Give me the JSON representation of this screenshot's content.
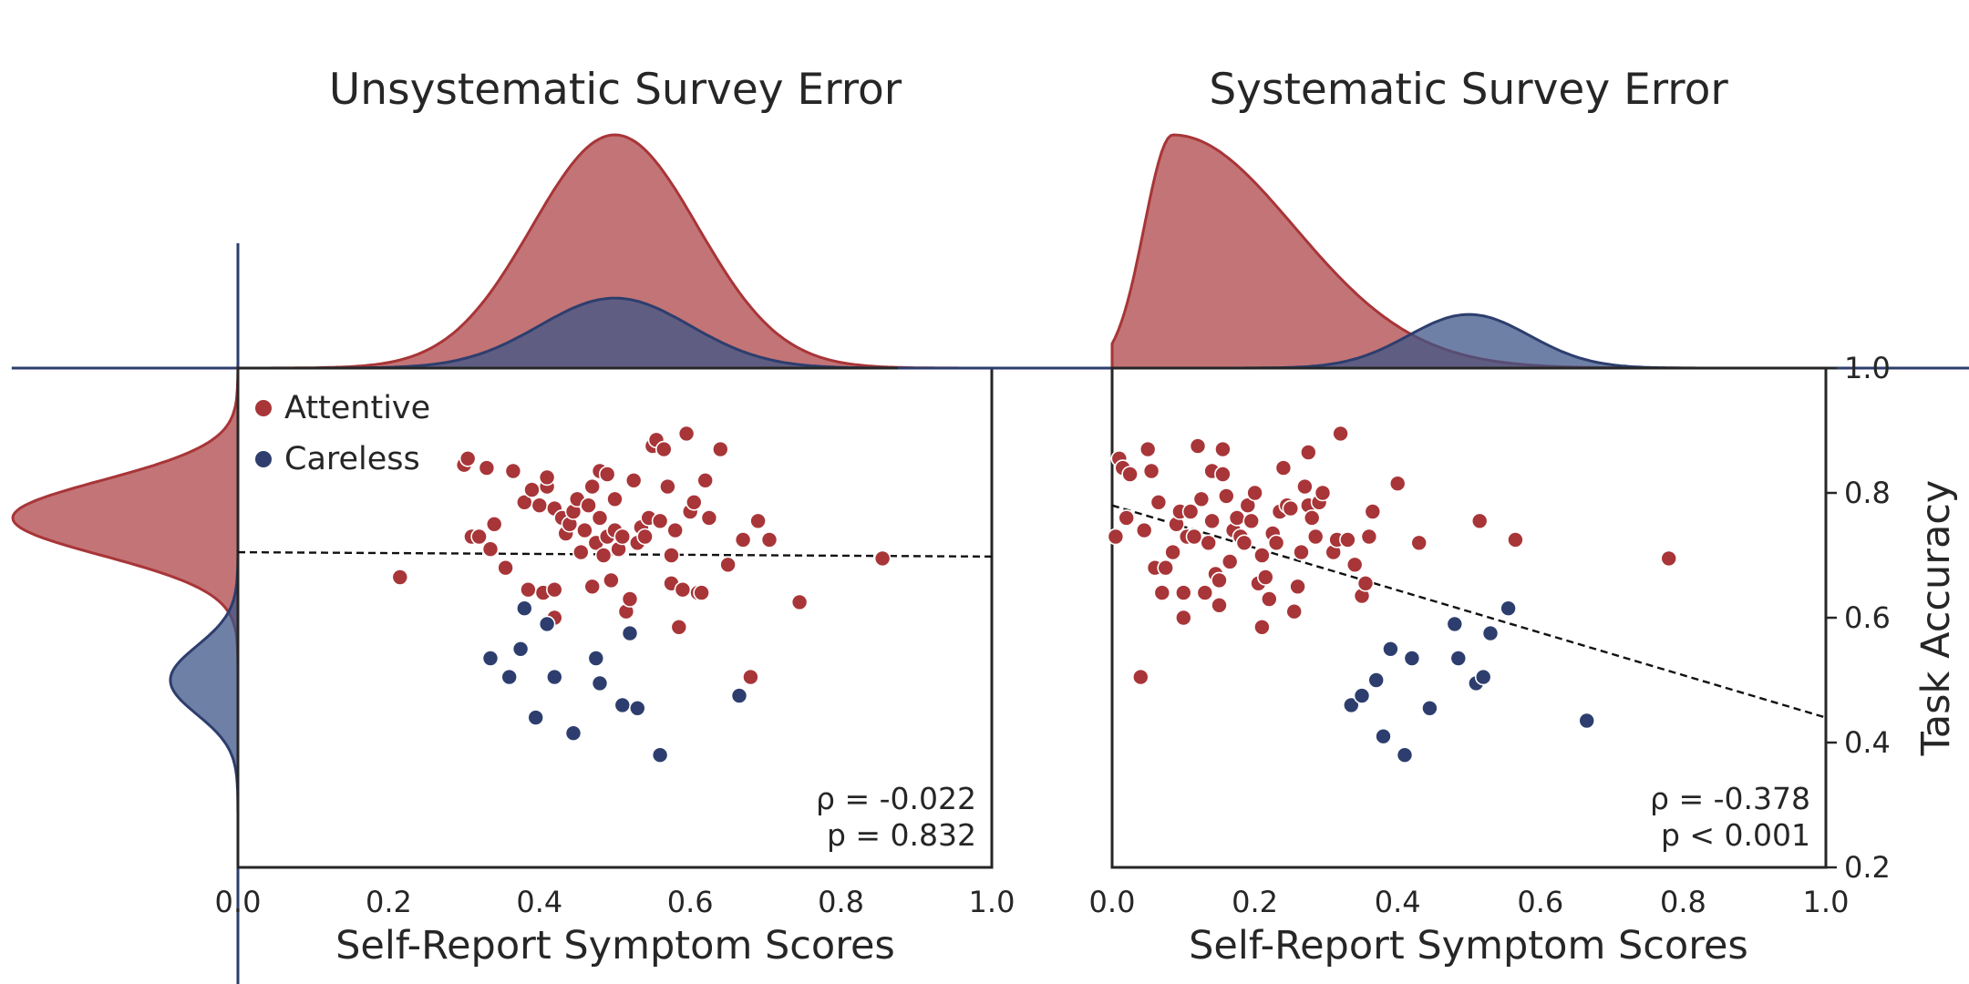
{
  "colors": {
    "attentive": "#a83538",
    "careless": "#2d3e6e",
    "attentive_fill": "#b24d50",
    "careless_fill": "#3f5688"
  },
  "legend": {
    "attentive": "Attentive",
    "careless": "Careless"
  },
  "chart_data": [
    {
      "type": "scatter",
      "title": "Unsystematic Survey Error",
      "xlabel": "Self-Report Symptom Scores",
      "ylabel": "",
      "xlim": [
        0,
        1
      ],
      "ylim": [
        0.2,
        1.0
      ],
      "xticks": [
        "0.0",
        "0.2",
        "0.4",
        "0.6",
        "0.8",
        "1.0"
      ],
      "yticks": [],
      "stat_rho": "ρ = -0.022",
      "stat_p": "p = 0.832",
      "regression": {
        "x": [
          0,
          1
        ],
        "y": [
          0.705,
          0.698
        ]
      },
      "series": [
        {
          "name": "Attentive",
          "points": [
            [
              0.215,
              0.665
            ],
            [
              0.3,
              0.845
            ],
            [
              0.305,
              0.855
            ],
            [
              0.31,
              0.73
            ],
            [
              0.32,
              0.73
            ],
            [
              0.33,
              0.84
            ],
            [
              0.335,
              0.71
            ],
            [
              0.34,
              0.75
            ],
            [
              0.355,
              0.68
            ],
            [
              0.365,
              0.835
            ],
            [
              0.38,
              0.785
            ],
            [
              0.385,
              0.645
            ],
            [
              0.39,
              0.805
            ],
            [
              0.4,
              0.78
            ],
            [
              0.405,
              0.64
            ],
            [
              0.41,
              0.81
            ],
            [
              0.41,
              0.825
            ],
            [
              0.42,
              0.775
            ],
            [
              0.42,
              0.645
            ],
            [
              0.42,
              0.6
            ],
            [
              0.43,
              0.76
            ],
            [
              0.435,
              0.735
            ],
            [
              0.44,
              0.75
            ],
            [
              0.445,
              0.77
            ],
            [
              0.45,
              0.79
            ],
            [
              0.455,
              0.705
            ],
            [
              0.46,
              0.74
            ],
            [
              0.465,
              0.78
            ],
            [
              0.47,
              0.81
            ],
            [
              0.47,
              0.65
            ],
            [
              0.475,
              0.72
            ],
            [
              0.48,
              0.835
            ],
            [
              0.48,
              0.76
            ],
            [
              0.485,
              0.7
            ],
            [
              0.49,
              0.83
            ],
            [
              0.49,
              0.73
            ],
            [
              0.495,
              0.66
            ],
            [
              0.5,
              0.79
            ],
            [
              0.5,
              0.74
            ],
            [
              0.505,
              0.71
            ],
            [
              0.51,
              0.73
            ],
            [
              0.515,
              0.61
            ],
            [
              0.52,
              0.63
            ],
            [
              0.525,
              0.82
            ],
            [
              0.53,
              0.72
            ],
            [
              0.535,
              0.745
            ],
            [
              0.54,
              0.73
            ],
            [
              0.545,
              0.76
            ],
            [
              0.55,
              0.875
            ],
            [
              0.555,
              0.885
            ],
            [
              0.56,
              0.755
            ],
            [
              0.565,
              0.87
            ],
            [
              0.57,
              0.81
            ],
            [
              0.575,
              0.7
            ],
            [
              0.575,
              0.655
            ],
            [
              0.58,
              0.74
            ],
            [
              0.585,
              0.585
            ],
            [
              0.59,
              0.645
            ],
            [
              0.595,
              0.895
            ],
            [
              0.6,
              0.77
            ],
            [
              0.605,
              0.785
            ],
            [
              0.61,
              0.64
            ],
            [
              0.615,
              0.64
            ],
            [
              0.62,
              0.82
            ],
            [
              0.625,
              0.76
            ],
            [
              0.64,
              0.87
            ],
            [
              0.65,
              0.685
            ],
            [
              0.67,
              0.725
            ],
            [
              0.68,
              0.505
            ],
            [
              0.69,
              0.755
            ],
            [
              0.705,
              0.725
            ],
            [
              0.745,
              0.625
            ],
            [
              0.855,
              0.695
            ]
          ]
        },
        {
          "name": "Careless",
          "points": [
            [
              0.335,
              0.535
            ],
            [
              0.36,
              0.505
            ],
            [
              0.375,
              0.55
            ],
            [
              0.38,
              0.615
            ],
            [
              0.395,
              0.44
            ],
            [
              0.41,
              0.59
            ],
            [
              0.42,
              0.505
            ],
            [
              0.445,
              0.415
            ],
            [
              0.475,
              0.535
            ],
            [
              0.48,
              0.495
            ],
            [
              0.51,
              0.46
            ],
            [
              0.52,
              0.575
            ],
            [
              0.53,
              0.455
            ],
            [
              0.56,
              0.38
            ],
            [
              0.665,
              0.475
            ]
          ]
        }
      ],
      "marginal_x": [
        {
          "name": "Attentive",
          "mean": 0.5,
          "sd": 0.11,
          "amp": 1.0
        },
        {
          "name": "Careless",
          "mean": 0.5,
          "sd": 0.1,
          "amp": 0.3
        }
      ],
      "marginal_y": [
        {
          "name": "Attentive",
          "mean": 0.76,
          "sd": 0.06,
          "amp": 1.0
        },
        {
          "name": "Careless",
          "mean": 0.5,
          "sd": 0.055,
          "amp": 0.3
        }
      ]
    },
    {
      "type": "scatter",
      "title": "Systematic Survey Error",
      "xlabel": "Self-Report Symptom Scores",
      "ylabel": "Task Accuracy",
      "xlim": [
        0,
        1
      ],
      "ylim": [
        0.2,
        1.0
      ],
      "xticks": [
        "0.0",
        "0.2",
        "0.4",
        "0.6",
        "0.8",
        "1.0"
      ],
      "yticks": [
        "0.2",
        "0.4",
        "0.6",
        "0.8",
        "1.0"
      ],
      "stat_rho": "ρ = -0.378",
      "stat_p": "p < 0.001",
      "regression": {
        "x": [
          0,
          1
        ],
        "y": [
          0.78,
          0.44
        ]
      },
      "series": [
        {
          "name": "Attentive",
          "points": [
            [
              0.005,
              0.73
            ],
            [
              0.01,
              0.855
            ],
            [
              0.015,
              0.84
            ],
            [
              0.02,
              0.76
            ],
            [
              0.025,
              0.83
            ],
            [
              0.04,
              0.505
            ],
            [
              0.045,
              0.74
            ],
            [
              0.05,
              0.87
            ],
            [
              0.055,
              0.835
            ],
            [
              0.06,
              0.68
            ],
            [
              0.065,
              0.785
            ],
            [
              0.07,
              0.64
            ],
            [
              0.075,
              0.68
            ],
            [
              0.085,
              0.705
            ],
            [
              0.09,
              0.75
            ],
            [
              0.095,
              0.77
            ],
            [
              0.1,
              0.6
            ],
            [
              0.1,
              0.64
            ],
            [
              0.105,
              0.73
            ],
            [
              0.11,
              0.77
            ],
            [
              0.115,
              0.73
            ],
            [
              0.12,
              0.875
            ],
            [
              0.125,
              0.79
            ],
            [
              0.13,
              0.64
            ],
            [
              0.135,
              0.72
            ],
            [
              0.14,
              0.755
            ],
            [
              0.14,
              0.835
            ],
            [
              0.145,
              0.67
            ],
            [
              0.15,
              0.62
            ],
            [
              0.15,
              0.66
            ],
            [
              0.155,
              0.83
            ],
            [
              0.155,
              0.87
            ],
            [
              0.16,
              0.795
            ],
            [
              0.165,
              0.69
            ],
            [
              0.17,
              0.74
            ],
            [
              0.175,
              0.76
            ],
            [
              0.18,
              0.73
            ],
            [
              0.185,
              0.72
            ],
            [
              0.19,
              0.78
            ],
            [
              0.195,
              0.755
            ],
            [
              0.2,
              0.8
            ],
            [
              0.205,
              0.655
            ],
            [
              0.21,
              0.585
            ],
            [
              0.21,
              0.7
            ],
            [
              0.215,
              0.665
            ],
            [
              0.22,
              0.63
            ],
            [
              0.225,
              0.735
            ],
            [
              0.23,
              0.72
            ],
            [
              0.235,
              0.77
            ],
            [
              0.24,
              0.84
            ],
            [
              0.245,
              0.78
            ],
            [
              0.25,
              0.775
            ],
            [
              0.255,
              0.61
            ],
            [
              0.26,
              0.65
            ],
            [
              0.265,
              0.705
            ],
            [
              0.27,
              0.81
            ],
            [
              0.275,
              0.78
            ],
            [
              0.275,
              0.865
            ],
            [
              0.28,
              0.76
            ],
            [
              0.285,
              0.73
            ],
            [
              0.29,
              0.785
            ],
            [
              0.295,
              0.8
            ],
            [
              0.31,
              0.705
            ],
            [
              0.315,
              0.725
            ],
            [
              0.32,
              0.895
            ],
            [
              0.33,
              0.725
            ],
            [
              0.34,
              0.685
            ],
            [
              0.35,
              0.635
            ],
            [
              0.355,
              0.655
            ],
            [
              0.36,
              0.73
            ],
            [
              0.365,
              0.77
            ],
            [
              0.4,
              0.815
            ],
            [
              0.43,
              0.72
            ],
            [
              0.515,
              0.755
            ],
            [
              0.565,
              0.725
            ],
            [
              0.78,
              0.695
            ]
          ]
        },
        {
          "name": "Careless",
          "points": [
            [
              0.335,
              0.46
            ],
            [
              0.35,
              0.475
            ],
            [
              0.37,
              0.5
            ],
            [
              0.38,
              0.41
            ],
            [
              0.39,
              0.55
            ],
            [
              0.41,
              0.38
            ],
            [
              0.42,
              0.535
            ],
            [
              0.445,
              0.455
            ],
            [
              0.48,
              0.59
            ],
            [
              0.485,
              0.535
            ],
            [
              0.51,
              0.495
            ],
            [
              0.52,
              0.505
            ],
            [
              0.53,
              0.575
            ],
            [
              0.555,
              0.615
            ],
            [
              0.665,
              0.435
            ]
          ]
        }
      ],
      "marginal_x": [
        {
          "name": "Attentive",
          "mean": 0.085,
          "sd": 0.04,
          "sd_right": 0.17,
          "amp": 1.0,
          "clip_left": 0.0
        },
        {
          "name": "Careless",
          "mean": 0.5,
          "sd": 0.085,
          "amp": 0.23
        }
      ]
    }
  ]
}
